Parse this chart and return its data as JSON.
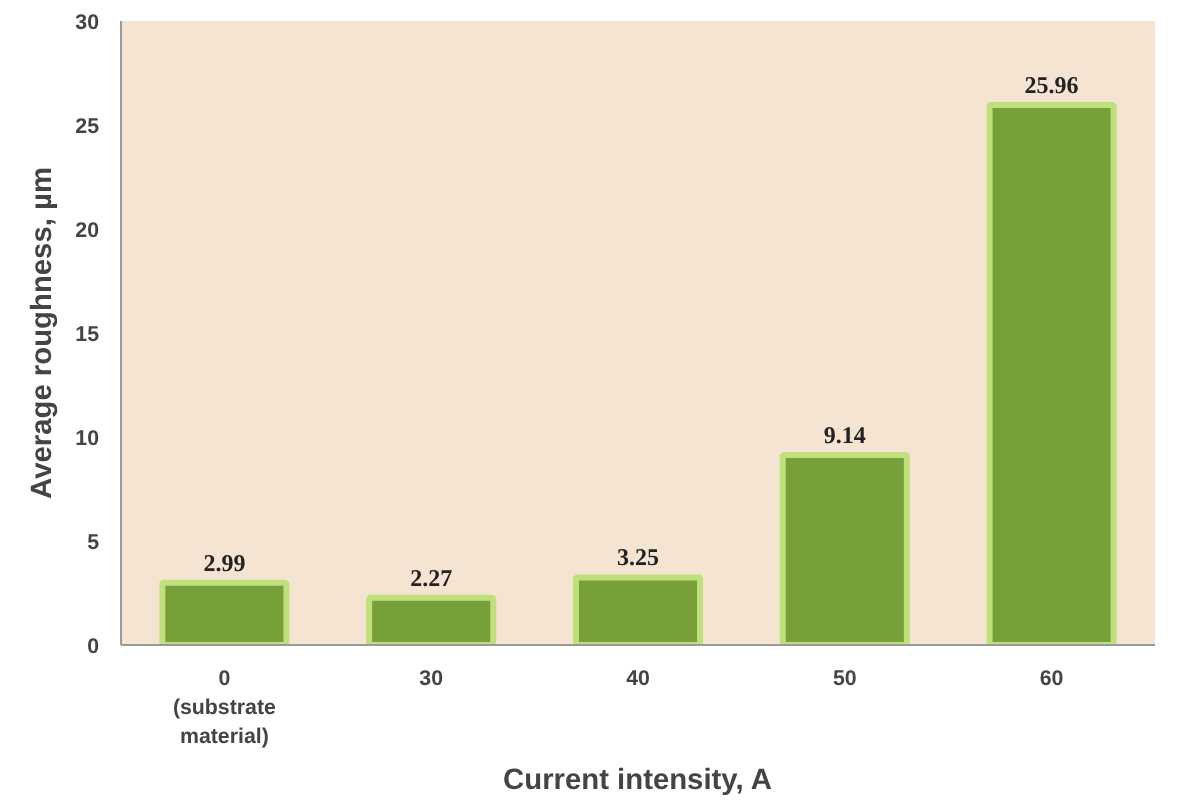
{
  "chart_data": {
    "type": "bar",
    "xlabel": "Current intensity, A",
    "ylabel": "Average roughness, µm",
    "categories": [
      "0\n(substrate\nmaterial)",
      "30",
      "40",
      "50",
      "60"
    ],
    "values": [
      2.99,
      2.27,
      3.25,
      9.14,
      25.96
    ],
    "color": "#77a03a",
    "ylim": [
      0,
      30
    ],
    "yticks": [
      0,
      5,
      10,
      15,
      20,
      25,
      30
    ],
    "grid": false,
    "data_labels": true
  }
}
